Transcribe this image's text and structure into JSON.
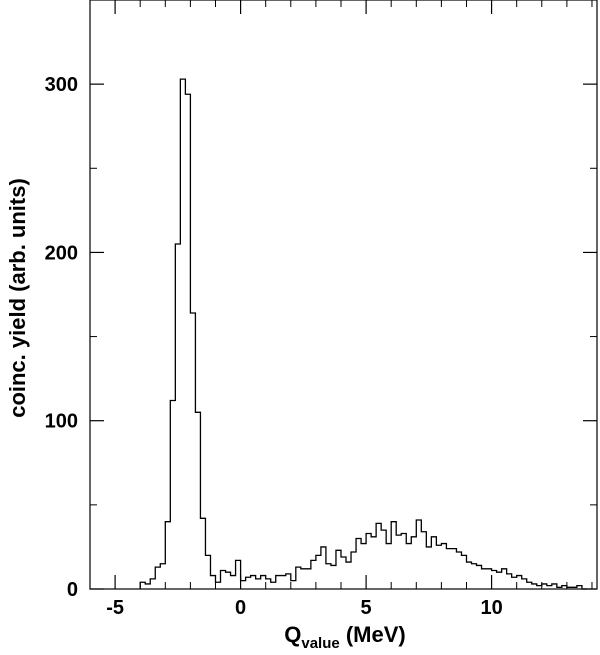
{
  "chart_data": {
    "type": "histogram",
    "xlabel": "Q",
    "xlabel_subscript": "value",
    "xlabel_unit": " (MeV)",
    "ylabel": "coinc. yield (arb. units)",
    "xlim": [
      -6,
      14.2
    ],
    "ylim": [
      0,
      350
    ],
    "xticks": [
      -5,
      0,
      5,
      10
    ],
    "yticks": [
      0,
      100,
      200,
      300
    ],
    "xticks_minor": [
      -6,
      -4,
      -3,
      -2,
      -1,
      1,
      2,
      3,
      4,
      6,
      7,
      8,
      9,
      11,
      12,
      13,
      14
    ],
    "yticks_minor": [
      50,
      150,
      250,
      350
    ],
    "grid": false,
    "legend": "none",
    "line_color": "#000000",
    "bins": {
      "start": -4.0,
      "width": 0.2,
      "counts": [
        4,
        3,
        6,
        13,
        15,
        40,
        112,
        205,
        303,
        294,
        164,
        105,
        42,
        20,
        8,
        4,
        11,
        10,
        8,
        17,
        5,
        7,
        8,
        6,
        8,
        6,
        4,
        8,
        8,
        9,
        5,
        13,
        12,
        12,
        17,
        20,
        25,
        15,
        14,
        23,
        19,
        16,
        22,
        30,
        27,
        33,
        31,
        39,
        35,
        27,
        40,
        32,
        33,
        27,
        31,
        41,
        34,
        25,
        31,
        26,
        27,
        24,
        24,
        22,
        20,
        16,
        15,
        14,
        12,
        12,
        11,
        10,
        12,
        9,
        7,
        8,
        6,
        4,
        3,
        2,
        3,
        2,
        3,
        1,
        2,
        1,
        1,
        2,
        0
      ]
    }
  }
}
